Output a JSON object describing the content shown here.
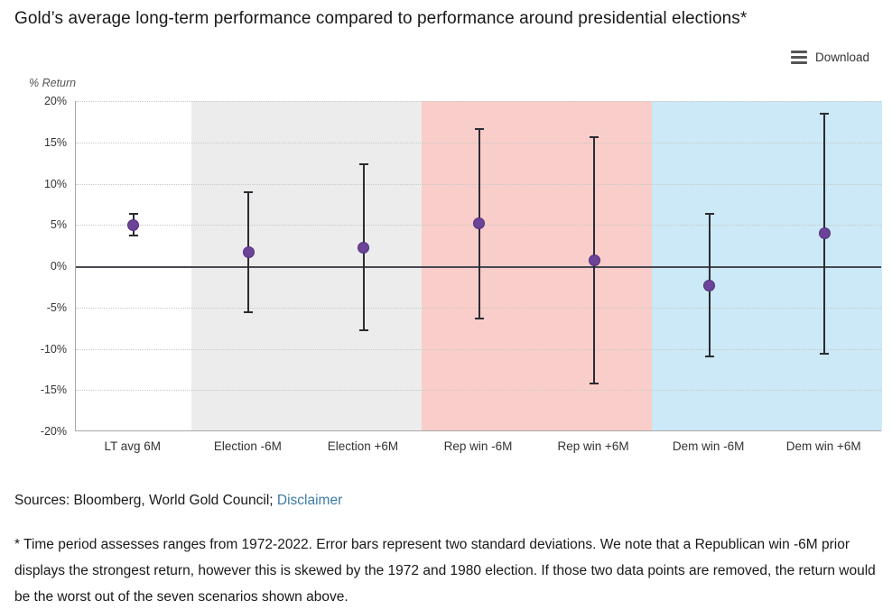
{
  "title": "Gold’s average long-term performance compared to performance around presidential elections*",
  "toolbar": {
    "download_label": "Download"
  },
  "chart_data": {
    "type": "scatter",
    "subtype": "dot-with-error-bars",
    "ylabel": "% Return",
    "ylim": [
      -20,
      20
    ],
    "ytick_step": 5,
    "ytick_suffix": "%",
    "grid": "dotted-horizontal",
    "legend": "none",
    "zero_line": true,
    "error_bar_meaning": "two standard deviations",
    "categories": [
      "LT avg 6M",
      "Election -6M",
      "Election +6M",
      "Rep win -6M",
      "Rep win +6M",
      "Dem win -6M",
      "Dem win +6M"
    ],
    "points": [
      {
        "category": "LT avg 6M",
        "value": 5.0,
        "low": 3.7,
        "high": 6.3
      },
      {
        "category": "Election -6M",
        "value": 1.7,
        "low": -5.6,
        "high": 9.0
      },
      {
        "category": "Election +6M",
        "value": 2.2,
        "low": -7.8,
        "high": 12.3
      },
      {
        "category": "Rep win -6M",
        "value": 5.2,
        "low": -6.3,
        "high": 16.6
      },
      {
        "category": "Rep win +6M",
        "value": 0.7,
        "low": -14.2,
        "high": 15.6
      },
      {
        "category": "Dem win -6M",
        "value": -2.3,
        "low": -10.9,
        "high": 6.3
      },
      {
        "category": "Dem win +6M",
        "value": 4.0,
        "low": -10.6,
        "high": 18.5
      }
    ],
    "bands": [
      {
        "name": "long-term-average",
        "from_index": 0,
        "to_index": 1,
        "color": "#ffffff"
      },
      {
        "name": "all-elections",
        "from_index": 1,
        "to_index": 3,
        "color": "#ececec"
      },
      {
        "name": "republican-win",
        "from_index": 3,
        "to_index": 5,
        "color": "#f9cdc9"
      },
      {
        "name": "democrat-win",
        "from_index": 5,
        "to_index": 7,
        "color": "#cbe9f6"
      }
    ],
    "marker_color": "#6b4397",
    "errorbar_color": "#2b2b33",
    "zero_line_color": "#494953"
  },
  "footer": {
    "sources_prefix": "Sources: Bloomberg, World Gold Council; ",
    "disclaimer_link": "Disclaimer",
    "footnote": "* Time period assesses ranges from 1972-2022. Error bars represent two standard deviations. We note that a Republican win -6M prior displays the strongest return, however this is skewed by the 1972 and 1980 election. If those two data points are removed, the return would be the worst out of the seven scenarios shown above."
  }
}
